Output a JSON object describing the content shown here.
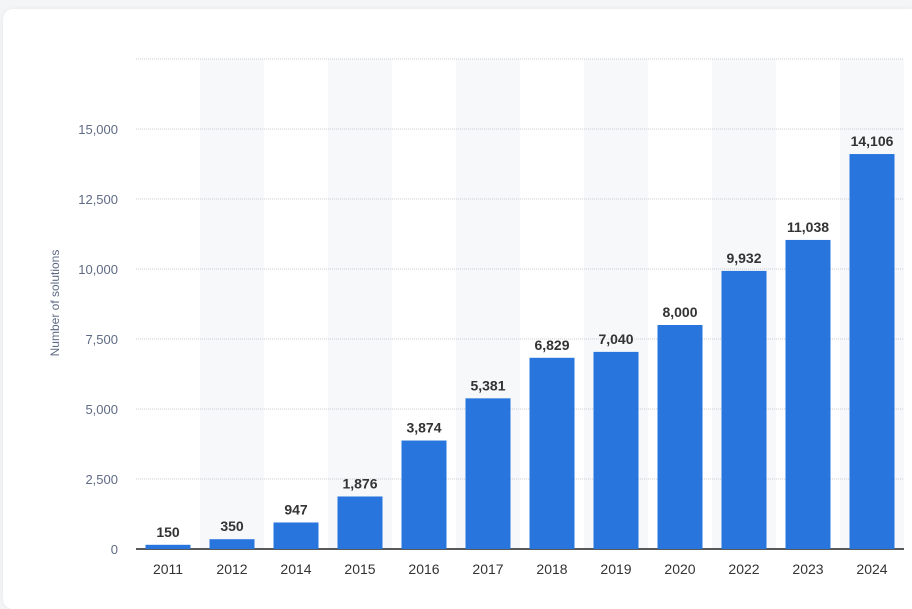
{
  "chart_data": {
    "type": "bar",
    "categories": [
      "2011",
      "2012",
      "2014",
      "2015",
      "2016",
      "2017",
      "2018",
      "2019",
      "2020",
      "2022",
      "2023",
      "2024"
    ],
    "values": [
      150,
      350,
      947,
      1876,
      3874,
      5381,
      6829,
      7040,
      8000,
      9932,
      11038,
      14106
    ],
    "value_labels": [
      "150",
      "350",
      "947",
      "1,876",
      "3,874",
      "5,381",
      "6,829",
      "7,040",
      "8,000",
      "9,932",
      "11,038",
      "14,106"
    ],
    "ylabel": "Number of solutions",
    "xlabel": "",
    "ylim": [
      0,
      17500
    ],
    "yticks": [
      0,
      2500,
      5000,
      7500,
      10000,
      12500,
      15000,
      17500
    ],
    "ytick_labels": [
      "0",
      "2,500",
      "5,000",
      "7,500",
      "10,000",
      "12,500",
      "15,000",
      ""
    ],
    "grid": true,
    "bar_color": "#2876dd",
    "band_color": "#f7f8f9"
  }
}
